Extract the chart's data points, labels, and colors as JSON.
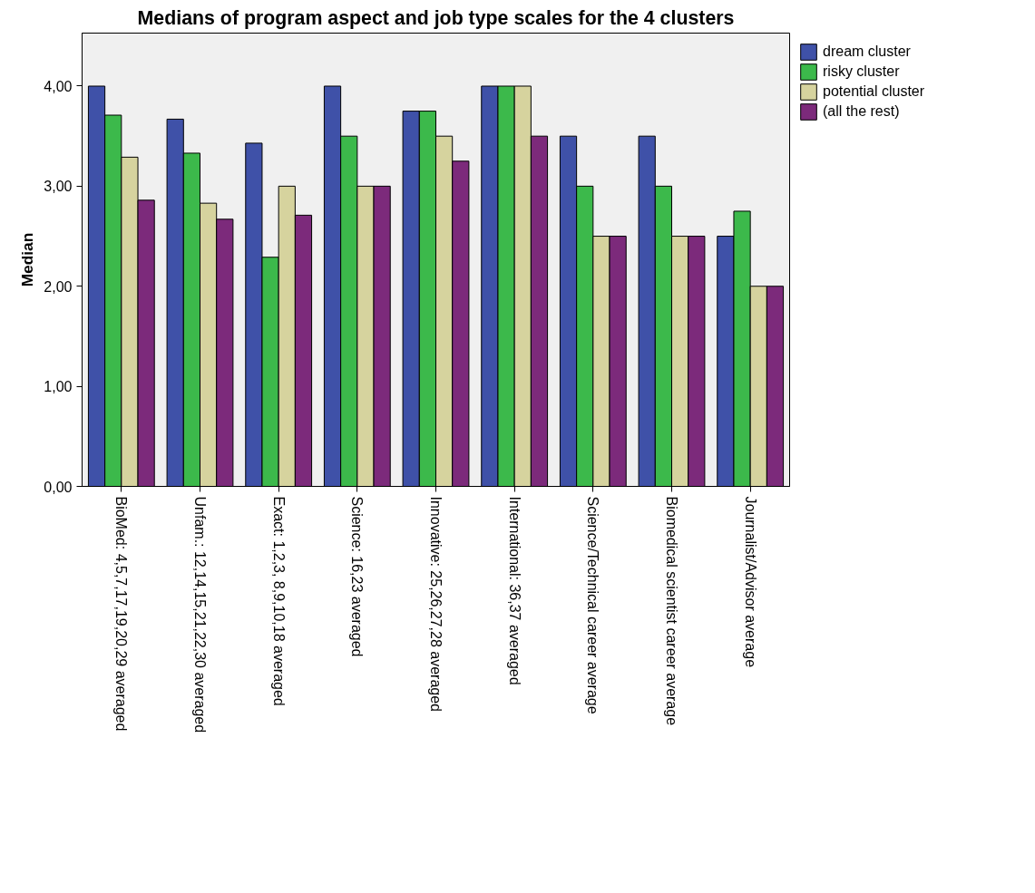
{
  "chart_data": {
    "type": "bar",
    "title": "Medians of program aspect and job type scales for the 4 clusters",
    "ylabel": "Median",
    "categories": [
      "BioMed: 4,5,7,17,19,20,29 averaged",
      "Unfam.: 12,14,15,21,22,30 averaged",
      "Exact: 1,2,3, 8,9,10,18 averaged",
      "Science: 16,23 averaged",
      "Innovative: 25,26,27,28 averaged",
      "International: 36,37 averaged",
      "Science/Technical career average",
      "Biomedical scientist career average",
      "Journalist/Advisor average"
    ],
    "series": [
      {
        "name": "dream cluster",
        "color": "#3f51a8",
        "values": [
          4.0,
          3.67,
          3.43,
          4.0,
          3.75,
          4.0,
          3.5,
          3.5,
          2.5
        ]
      },
      {
        "name": "risky cluster",
        "color": "#3cb94b",
        "values": [
          3.71,
          3.33,
          2.29,
          3.5,
          3.75,
          4.0,
          3.0,
          3.0,
          2.75
        ]
      },
      {
        "name": "potential cluster",
        "color": "#d6d39e",
        "values": [
          3.29,
          2.83,
          3.0,
          3.0,
          3.5,
          4.0,
          2.5,
          2.5,
          2.0
        ]
      },
      {
        "name": "(all the rest)",
        "color": "#7c2a7b",
        "values": [
          2.86,
          2.67,
          2.71,
          3.0,
          3.25,
          3.5,
          2.5,
          2.5,
          2.0
        ]
      }
    ],
    "ylim": [
      0,
      4.53
    ],
    "yticks": [
      {
        "value": 0,
        "label": "0,00"
      },
      {
        "value": 1,
        "label": "1,00"
      },
      {
        "value": 2,
        "label": "2,00"
      },
      {
        "value": 3,
        "label": "3,00"
      },
      {
        "value": 4,
        "label": "4,00"
      }
    ],
    "grid": false,
    "legend": "right"
  }
}
